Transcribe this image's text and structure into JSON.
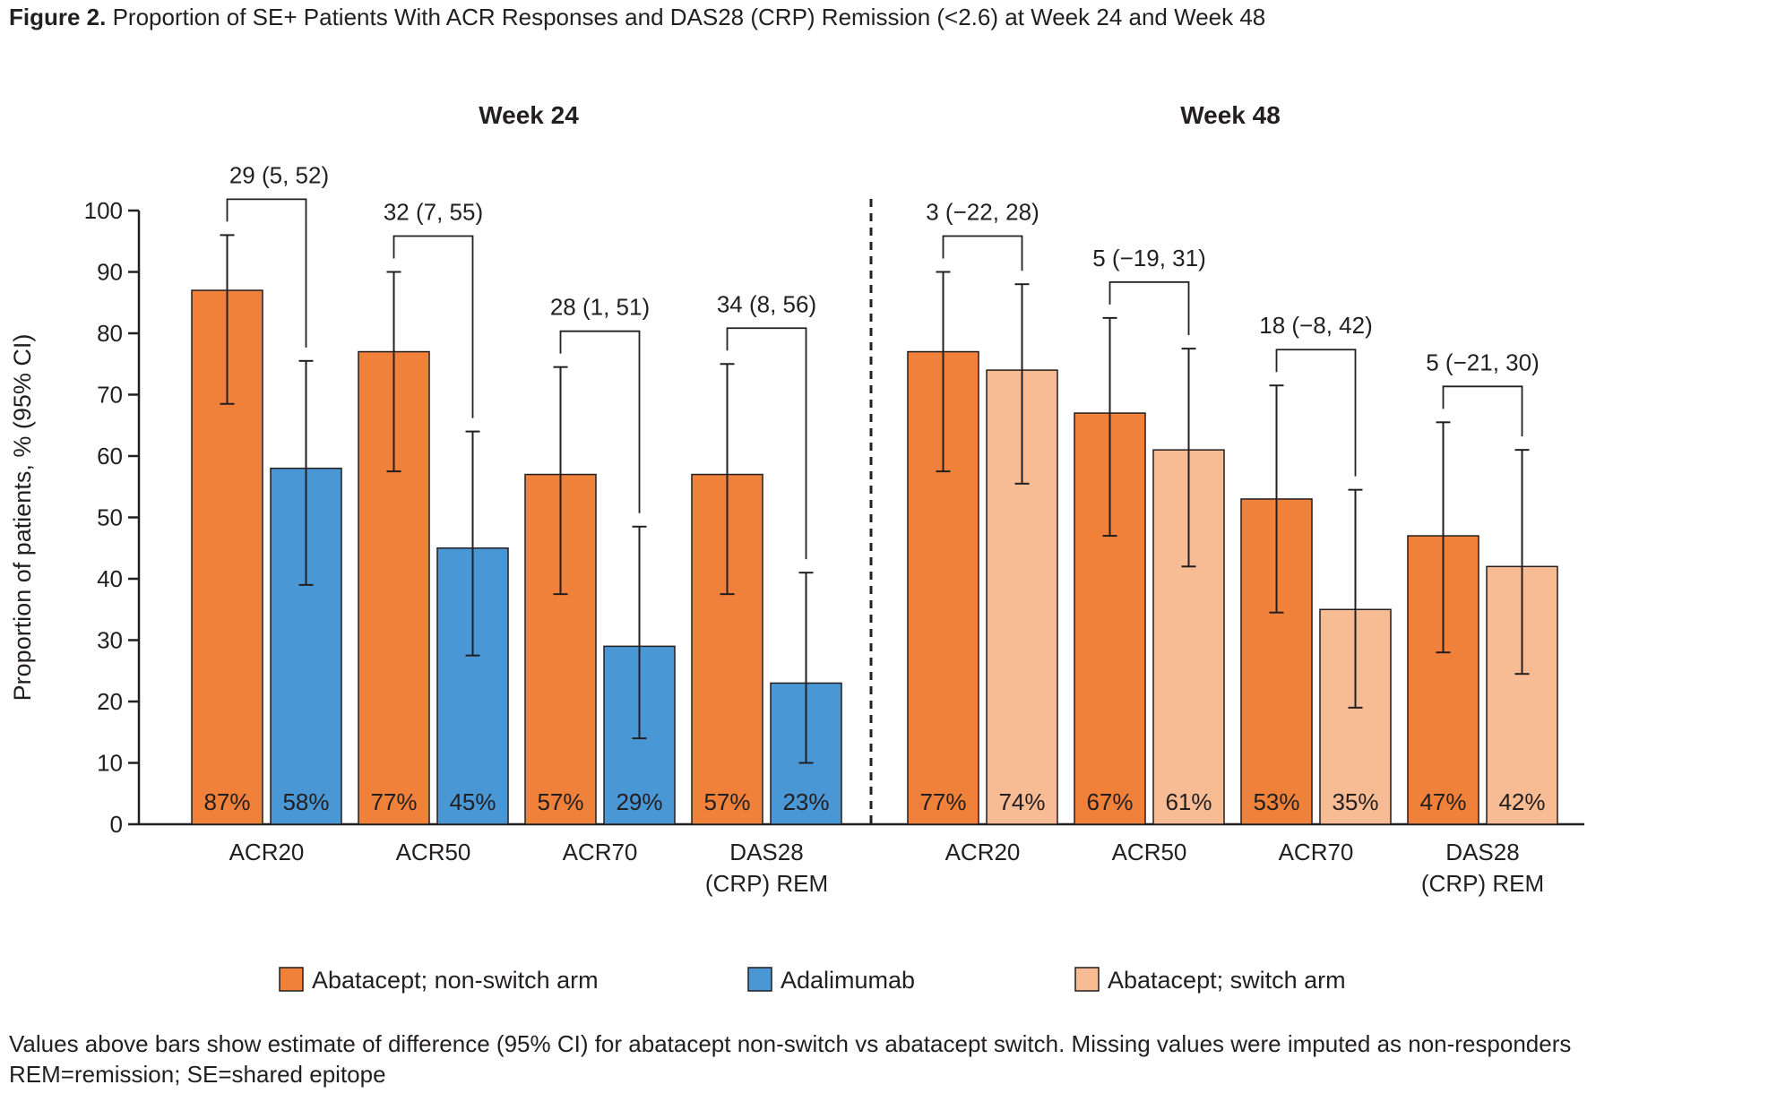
{
  "figure": {
    "label": "Figure 2.",
    "title": "Proportion of SE+ Patients With ACR Responses and DAS28 (CRP) Remission (<2.6) at Week 24 and Week 48"
  },
  "footnote": {
    "line1": "Values above bars show estimate of difference (95% CI) for abatacept non-switch vs abatacept switch. Missing values were imputed as non-responders",
    "line2": "REM=remission; SE=shared epitope"
  },
  "colors": {
    "abatacept_non_switch": "#F0813A",
    "adalimumab": "#4A97D6",
    "abatacept_switch": "#F8BC94",
    "outline": "#231f20"
  },
  "legend": [
    {
      "label": "Abatacept; non-switch arm",
      "color": "#F0813A"
    },
    {
      "label": "Adalimumab",
      "color": "#4A97D6"
    },
    {
      "label": "Abatacept; switch arm",
      "color": "#F8BC94"
    }
  ],
  "chart_data": {
    "type": "bar",
    "ylabel": "Proportion of patients, % (95% CI)",
    "ylim": [
      0,
      100
    ],
    "yticks": [
      0,
      10,
      20,
      30,
      40,
      50,
      60,
      70,
      80,
      90,
      100
    ],
    "panels": [
      {
        "title": "Week 24",
        "categories": [
          [
            "ACR20"
          ],
          [
            "ACR50"
          ],
          [
            "ACR70"
          ],
          [
            "DAS28",
            "(CRP) REM"
          ]
        ],
        "series": [
          {
            "name": "Abatacept; non-switch arm",
            "values": [
              87,
              77,
              57,
              57
            ],
            "ci_low": [
              68.5,
              57.5,
              37.5,
              37.5
            ],
            "ci_high": [
              96,
              90,
              74.5,
              75
            ],
            "labels": [
              "87%",
              "77%",
              "57%",
              "57%"
            ]
          },
          {
            "name": "Adalimumab",
            "values": [
              58,
              45,
              29,
              23
            ],
            "ci_low": [
              39,
              27.5,
              14,
              10
            ],
            "ci_high": [
              75.5,
              64,
              48.5,
              41
            ],
            "labels": [
              "58%",
              "45%",
              "29%",
              "23%"
            ]
          }
        ],
        "differences": [
          "29 (5, 52)",
          "32 (7, 55)",
          "28 (1, 51)",
          "34 (8, 56)"
        ]
      },
      {
        "title": "Week 48",
        "categories": [
          [
            "ACR20"
          ],
          [
            "ACR50"
          ],
          [
            "ACR70"
          ],
          [
            "DAS28",
            "(CRP) REM"
          ]
        ],
        "series": [
          {
            "name": "Abatacept; non-switch arm",
            "values": [
              77,
              67,
              53,
              47
            ],
            "ci_low": [
              57.5,
              47,
              34.5,
              28
            ],
            "ci_high": [
              90,
              82.5,
              71.5,
              65.5
            ],
            "labels": [
              "77%",
              "67%",
              "53%",
              "47%"
            ]
          },
          {
            "name": "Abatacept; switch arm",
            "values": [
              74,
              61,
              35,
              42
            ],
            "ci_low": [
              55.5,
              42,
              19,
              24.5
            ],
            "ci_high": [
              88,
              77.5,
              54.5,
              61
            ],
            "labels": [
              "74%",
              "61%",
              "35%",
              "42%"
            ]
          }
        ],
        "differences": [
          "3 (−22, 28)",
          "5 (−19, 31)",
          "18 (−8, 42)",
          "5 (−21, 30)"
        ]
      }
    ]
  }
}
